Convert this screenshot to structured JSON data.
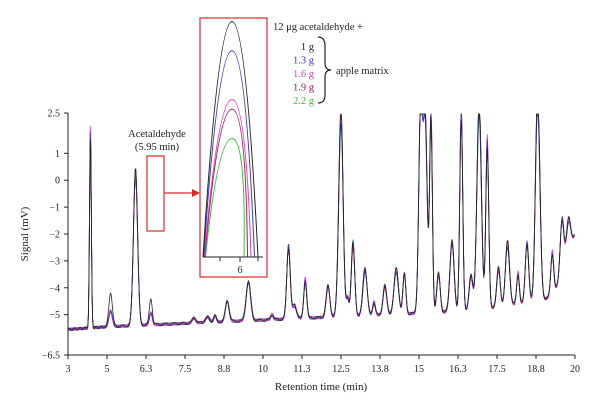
{
  "chart_data": {
    "type": "line",
    "title": "",
    "xlabel": "Retention time (min)",
    "ylabel": "Signal (mV)",
    "xlim": [
      3,
      20
    ],
    "ylim": [
      -6.5,
      2.5
    ],
    "x_ticks": [
      3,
      5,
      6.3,
      7.5,
      8.8,
      10,
      11.3,
      12.5,
      13.8,
      15,
      16.3,
      17.5,
      18.8,
      20
    ],
    "x_tick_labels": [
      "3",
      "5",
      "6.3",
      "7.5",
      "8.8",
      "10",
      "11.3",
      "12.5",
      "13.8",
      "15",
      "16.3",
      "17.5",
      "18.8",
      "20"
    ],
    "y_ticks": [
      2.5,
      1,
      0,
      -1,
      -2,
      -3,
      -4,
      -5,
      -6.5
    ],
    "y_tick_labels": [
      "2.5",
      "1",
      "0",
      "−1",
      "−2",
      "−3",
      "−4",
      "−5",
      "−6.5"
    ],
    "series": [
      {
        "name": "1 g",
        "color": "#222222",
        "peak_height": 0.9
      },
      {
        "name": "1.3 g",
        "color": "#3b3bb5",
        "peak_height": 0.75
      },
      {
        "name": "1.6 g",
        "color": "#e23fbf",
        "peak_height": 0.5
      },
      {
        "name": "1.9 g",
        "color": "#a0195e",
        "peak_height": 0.45
      },
      {
        "name": "2.2 g",
        "color": "#3fbf3f",
        "peak_height": 0.3
      }
    ],
    "peaks": [
      {
        "x": 4.15,
        "height": 7.8
      },
      {
        "x": 5.12,
        "height": 1.3
      },
      {
        "x": 5.95,
        "height": 5.9
      },
      {
        "x": 6.45,
        "height": 1.0
      },
      {
        "x": 7.8,
        "height": 0.2
      },
      {
        "x": 8.25,
        "height": 0.2
      },
      {
        "x": 8.5,
        "height": 0.25
      },
      {
        "x": 8.9,
        "height": 0.8
      },
      {
        "x": 9.55,
        "height": 1.5
      },
      {
        "x": 10.3,
        "height": 0.2
      },
      {
        "x": 10.85,
        "height": 2.8
      },
      {
        "x": 11.05,
        "height": 0.5
      },
      {
        "x": 11.4,
        "height": 1.5
      },
      {
        "x": 12.1,
        "height": 1.2
      },
      {
        "x": 12.5,
        "height": 7.8
      },
      {
        "x": 12.72,
        "height": 0.7
      },
      {
        "x": 12.9,
        "height": 2.8
      },
      {
        "x": 13.3,
        "height": 1.8
      },
      {
        "x": 13.6,
        "height": 0.5
      },
      {
        "x": 13.95,
        "height": 1.1
      },
      {
        "x": 14.3,
        "height": 1.7
      },
      {
        "x": 14.55,
        "height": 1.6
      },
      {
        "x": 15.05,
        "height": 7.8
      },
      {
        "x": 15.2,
        "height": 7.8
      },
      {
        "x": 15.4,
        "height": 7.8
      },
      {
        "x": 15.65,
        "height": 1.5
      },
      {
        "x": 16.1,
        "height": 2.7
      },
      {
        "x": 16.4,
        "height": 7.8
      },
      {
        "x": 16.7,
        "height": 1.3
      },
      {
        "x": 16.95,
        "height": 7.8
      },
      {
        "x": 17.2,
        "height": 6.5
      },
      {
        "x": 17.55,
        "height": 1.5
      },
      {
        "x": 17.85,
        "height": 2.4
      },
      {
        "x": 18.2,
        "height": 1.2
      },
      {
        "x": 18.5,
        "height": 2.3
      },
      {
        "x": 18.85,
        "height": 7.8
      },
      {
        "x": 19.3,
        "height": 1.6
      },
      {
        "x": 19.6,
        "height": 2.2
      },
      {
        "x": 19.8,
        "height": 1.5
      }
    ],
    "annotations": [
      {
        "text": "Acetaldehyde",
        "target_x": 5.95
      },
      {
        "text": "(5.95 min)",
        "target_x": 5.95
      }
    ],
    "inset": {
      "x_tick_labels": [
        "6"
      ],
      "heading": "12 μg acetaldehyde +",
      "bracket_label": "apple matrix"
    },
    "grid": false,
    "legend_placement": "top-right"
  }
}
